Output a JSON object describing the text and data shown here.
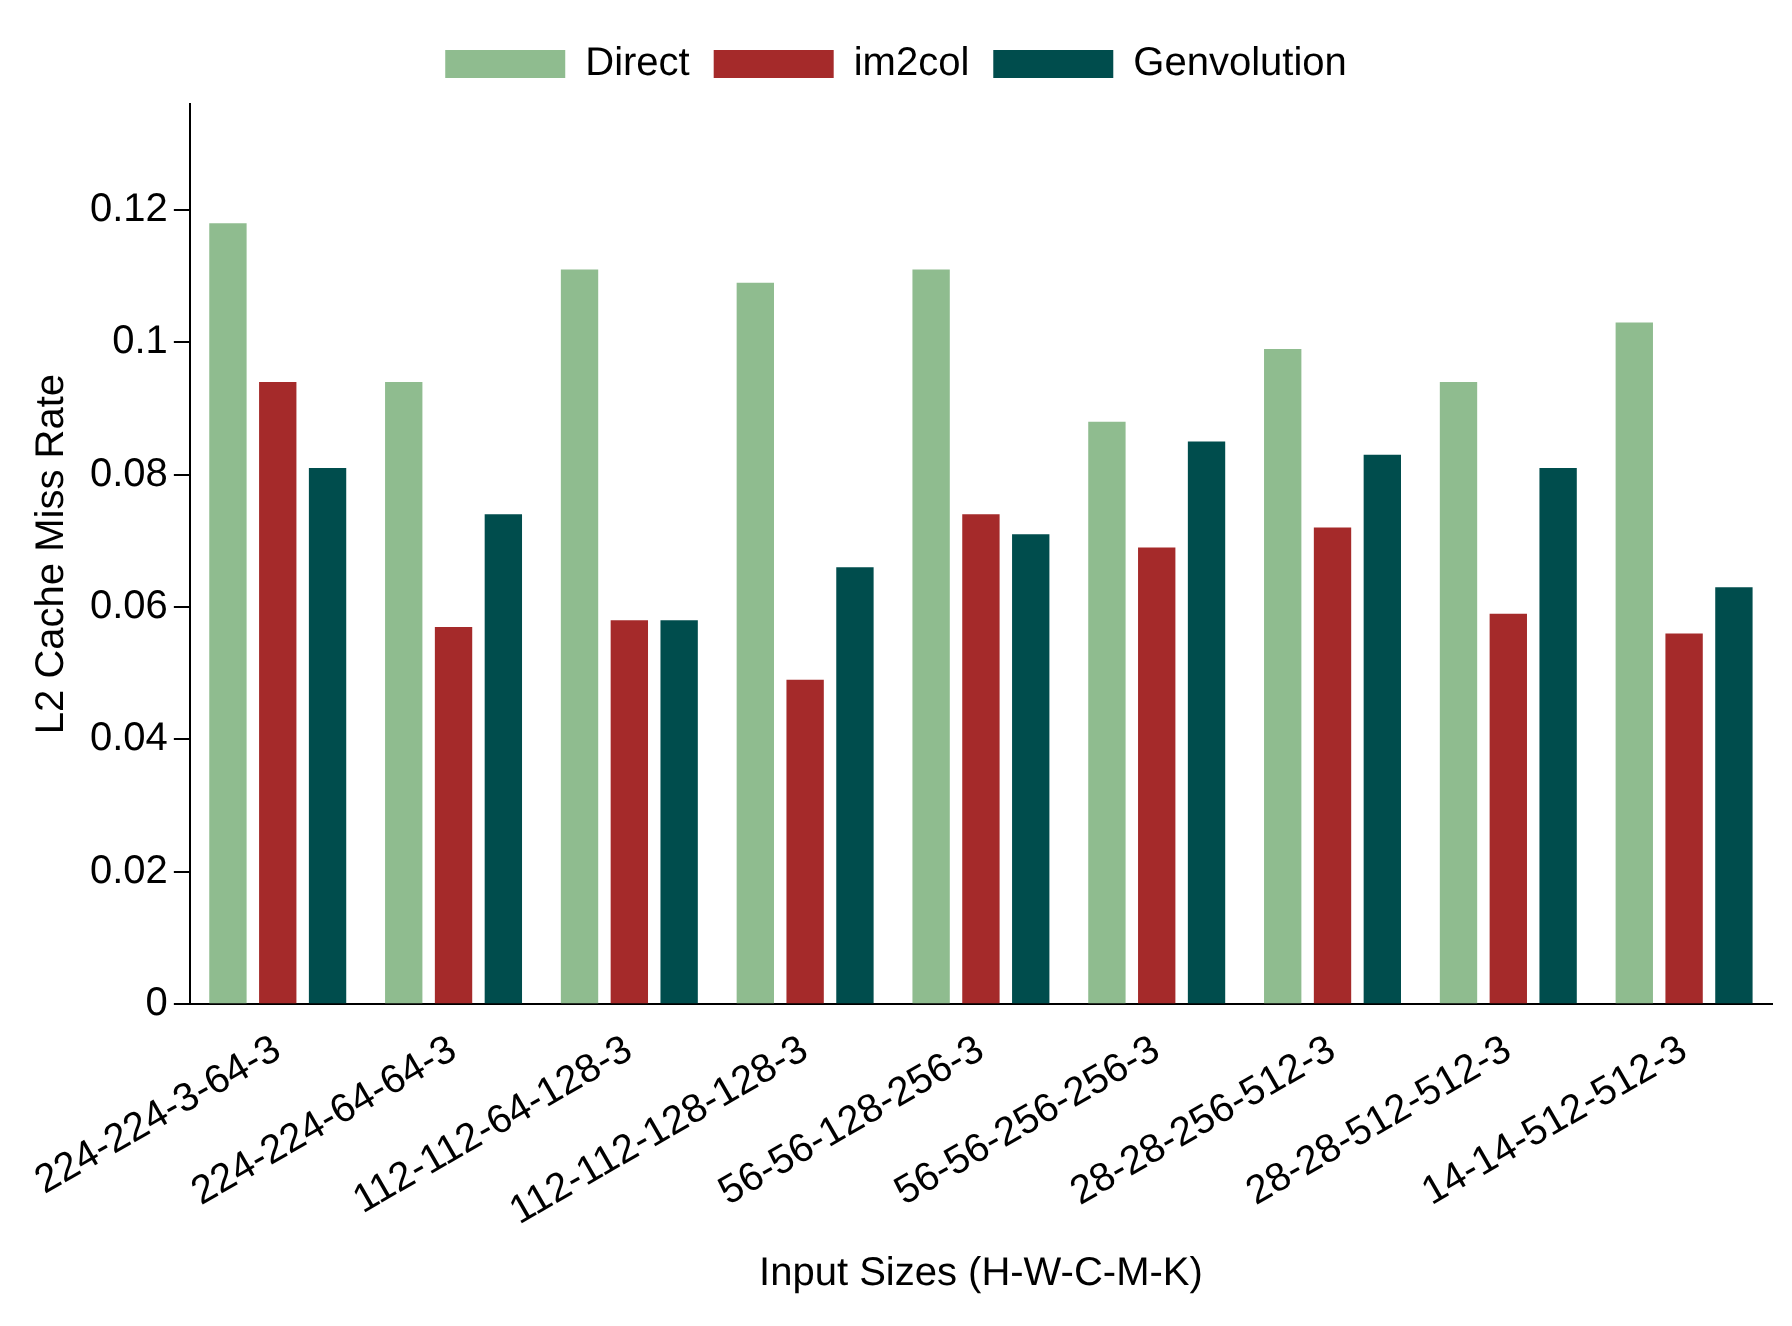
{
  "chart_data": {
    "type": "bar",
    "xlabel": "Input Sizes (H-W-C-M-K)",
    "ylabel": "L2 Cache Miss Rate",
    "categories": [
      "224-224-3-64-3",
      "224-224-64-64-3",
      "112-112-64-128-3",
      "112-112-128-128-3",
      "56-56-128-256-3",
      "56-56-256-256-3",
      "28-28-256-512-3",
      "28-28-512-512-3",
      "14-14-512-512-3"
    ],
    "series": [
      {
        "name": "Direct",
        "color": "#8fbc8f",
        "values": [
          0.118,
          0.094,
          0.111,
          0.109,
          0.111,
          0.088,
          0.099,
          0.094,
          0.103
        ]
      },
      {
        "name": "im2col",
        "color": "#a52a2a",
        "values": [
          0.094,
          0.057,
          0.058,
          0.049,
          0.074,
          0.069,
          0.072,
          0.059,
          0.056
        ]
      },
      {
        "name": "Genvolution",
        "color": "#004d4d",
        "values": [
          0.081,
          0.074,
          0.058,
          0.066,
          0.071,
          0.085,
          0.083,
          0.081,
          0.063
        ]
      }
    ],
    "ylim": [
      0,
      0.136
    ],
    "yticks": [
      0,
      0.02,
      0.04,
      0.06,
      0.08,
      0.1,
      0.12
    ],
    "grid": false,
    "legend": "top"
  }
}
